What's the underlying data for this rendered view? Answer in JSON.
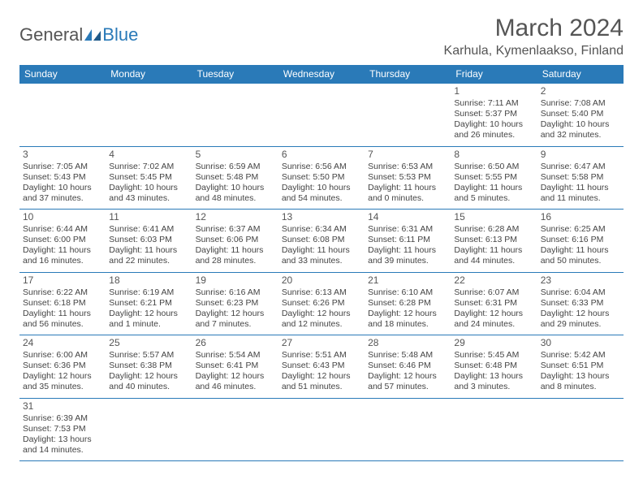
{
  "brand": {
    "part1": "General",
    "part2": "Blue"
  },
  "title": "March 2024",
  "location": "Karhula, Kymenlaakso, Finland",
  "colors": {
    "accent": "#2a7ab8",
    "text": "#555555",
    "bg": "#ffffff"
  },
  "weekdays": [
    "Sunday",
    "Monday",
    "Tuesday",
    "Wednesday",
    "Thursday",
    "Friday",
    "Saturday"
  ],
  "weeks": [
    [
      null,
      null,
      null,
      null,
      null,
      {
        "n": "1",
        "sunrise": "Sunrise: 7:11 AM",
        "sunset": "Sunset: 5:37 PM",
        "daylight": "Daylight: 10 hours and 26 minutes."
      },
      {
        "n": "2",
        "sunrise": "Sunrise: 7:08 AM",
        "sunset": "Sunset: 5:40 PM",
        "daylight": "Daylight: 10 hours and 32 minutes."
      }
    ],
    [
      {
        "n": "3",
        "sunrise": "Sunrise: 7:05 AM",
        "sunset": "Sunset: 5:43 PM",
        "daylight": "Daylight: 10 hours and 37 minutes."
      },
      {
        "n": "4",
        "sunrise": "Sunrise: 7:02 AM",
        "sunset": "Sunset: 5:45 PM",
        "daylight": "Daylight: 10 hours and 43 minutes."
      },
      {
        "n": "5",
        "sunrise": "Sunrise: 6:59 AM",
        "sunset": "Sunset: 5:48 PM",
        "daylight": "Daylight: 10 hours and 48 minutes."
      },
      {
        "n": "6",
        "sunrise": "Sunrise: 6:56 AM",
        "sunset": "Sunset: 5:50 PM",
        "daylight": "Daylight: 10 hours and 54 minutes."
      },
      {
        "n": "7",
        "sunrise": "Sunrise: 6:53 AM",
        "sunset": "Sunset: 5:53 PM",
        "daylight": "Daylight: 11 hours and 0 minutes."
      },
      {
        "n": "8",
        "sunrise": "Sunrise: 6:50 AM",
        "sunset": "Sunset: 5:55 PM",
        "daylight": "Daylight: 11 hours and 5 minutes."
      },
      {
        "n": "9",
        "sunrise": "Sunrise: 6:47 AM",
        "sunset": "Sunset: 5:58 PM",
        "daylight": "Daylight: 11 hours and 11 minutes."
      }
    ],
    [
      {
        "n": "10",
        "sunrise": "Sunrise: 6:44 AM",
        "sunset": "Sunset: 6:00 PM",
        "daylight": "Daylight: 11 hours and 16 minutes."
      },
      {
        "n": "11",
        "sunrise": "Sunrise: 6:41 AM",
        "sunset": "Sunset: 6:03 PM",
        "daylight": "Daylight: 11 hours and 22 minutes."
      },
      {
        "n": "12",
        "sunrise": "Sunrise: 6:37 AM",
        "sunset": "Sunset: 6:06 PM",
        "daylight": "Daylight: 11 hours and 28 minutes."
      },
      {
        "n": "13",
        "sunrise": "Sunrise: 6:34 AM",
        "sunset": "Sunset: 6:08 PM",
        "daylight": "Daylight: 11 hours and 33 minutes."
      },
      {
        "n": "14",
        "sunrise": "Sunrise: 6:31 AM",
        "sunset": "Sunset: 6:11 PM",
        "daylight": "Daylight: 11 hours and 39 minutes."
      },
      {
        "n": "15",
        "sunrise": "Sunrise: 6:28 AM",
        "sunset": "Sunset: 6:13 PM",
        "daylight": "Daylight: 11 hours and 44 minutes."
      },
      {
        "n": "16",
        "sunrise": "Sunrise: 6:25 AM",
        "sunset": "Sunset: 6:16 PM",
        "daylight": "Daylight: 11 hours and 50 minutes."
      }
    ],
    [
      {
        "n": "17",
        "sunrise": "Sunrise: 6:22 AM",
        "sunset": "Sunset: 6:18 PM",
        "daylight": "Daylight: 11 hours and 56 minutes."
      },
      {
        "n": "18",
        "sunrise": "Sunrise: 6:19 AM",
        "sunset": "Sunset: 6:21 PM",
        "daylight": "Daylight: 12 hours and 1 minute."
      },
      {
        "n": "19",
        "sunrise": "Sunrise: 6:16 AM",
        "sunset": "Sunset: 6:23 PM",
        "daylight": "Daylight: 12 hours and 7 minutes."
      },
      {
        "n": "20",
        "sunrise": "Sunrise: 6:13 AM",
        "sunset": "Sunset: 6:26 PM",
        "daylight": "Daylight: 12 hours and 12 minutes."
      },
      {
        "n": "21",
        "sunrise": "Sunrise: 6:10 AM",
        "sunset": "Sunset: 6:28 PM",
        "daylight": "Daylight: 12 hours and 18 minutes."
      },
      {
        "n": "22",
        "sunrise": "Sunrise: 6:07 AM",
        "sunset": "Sunset: 6:31 PM",
        "daylight": "Daylight: 12 hours and 24 minutes."
      },
      {
        "n": "23",
        "sunrise": "Sunrise: 6:04 AM",
        "sunset": "Sunset: 6:33 PM",
        "daylight": "Daylight: 12 hours and 29 minutes."
      }
    ],
    [
      {
        "n": "24",
        "sunrise": "Sunrise: 6:00 AM",
        "sunset": "Sunset: 6:36 PM",
        "daylight": "Daylight: 12 hours and 35 minutes."
      },
      {
        "n": "25",
        "sunrise": "Sunrise: 5:57 AM",
        "sunset": "Sunset: 6:38 PM",
        "daylight": "Daylight: 12 hours and 40 minutes."
      },
      {
        "n": "26",
        "sunrise": "Sunrise: 5:54 AM",
        "sunset": "Sunset: 6:41 PM",
        "daylight": "Daylight: 12 hours and 46 minutes."
      },
      {
        "n": "27",
        "sunrise": "Sunrise: 5:51 AM",
        "sunset": "Sunset: 6:43 PM",
        "daylight": "Daylight: 12 hours and 51 minutes."
      },
      {
        "n": "28",
        "sunrise": "Sunrise: 5:48 AM",
        "sunset": "Sunset: 6:46 PM",
        "daylight": "Daylight: 12 hours and 57 minutes."
      },
      {
        "n": "29",
        "sunrise": "Sunrise: 5:45 AM",
        "sunset": "Sunset: 6:48 PM",
        "daylight": "Daylight: 13 hours and 3 minutes."
      },
      {
        "n": "30",
        "sunrise": "Sunrise: 5:42 AM",
        "sunset": "Sunset: 6:51 PM",
        "daylight": "Daylight: 13 hours and 8 minutes."
      }
    ],
    [
      {
        "n": "31",
        "sunrise": "Sunrise: 6:39 AM",
        "sunset": "Sunset: 7:53 PM",
        "daylight": "Daylight: 13 hours and 14 minutes."
      },
      null,
      null,
      null,
      null,
      null,
      null
    ]
  ]
}
